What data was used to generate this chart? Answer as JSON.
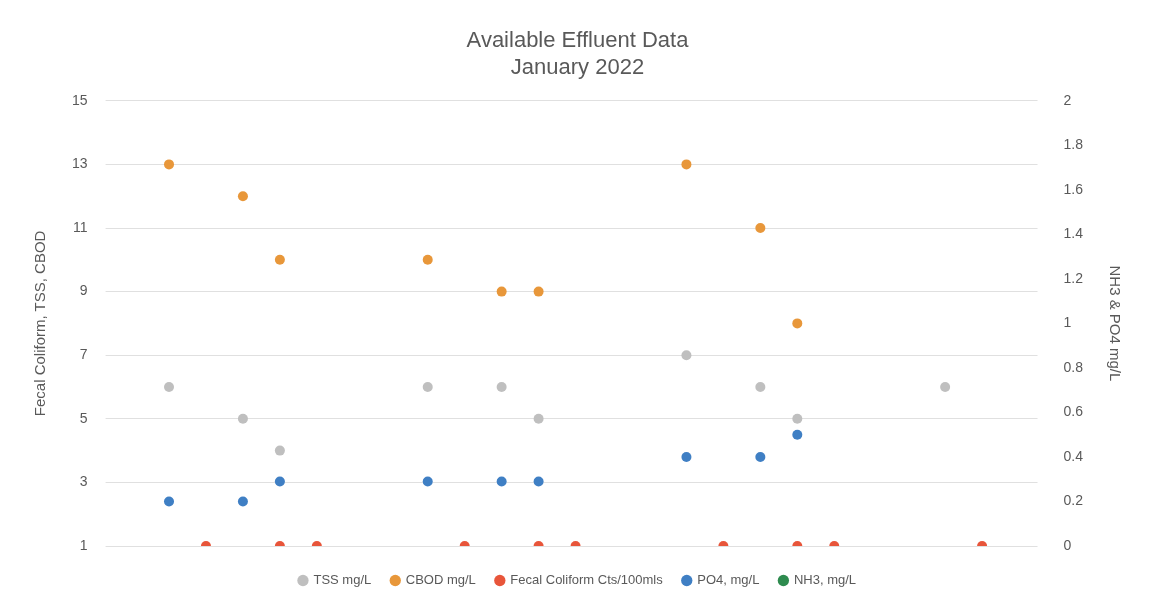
{
  "chart_data": {
    "type": "scatter",
    "title": "Available Effluent Data",
    "subtitle": "January 2022",
    "ylabel": "Fecal Coliform, TSS, CBOD",
    "y2label": "NH3 & PO4 mg/L",
    "categories": [
      null,
      null,
      null,
      null,
      null,
      null,
      null,
      null,
      null,
      null,
      null,
      null,
      null,
      null,
      null,
      null,
      null,
      null,
      null,
      null,
      null,
      null,
      null,
      null,
      null
    ],
    "ylim": [
      1,
      15
    ],
    "yticks": [
      1,
      3,
      5,
      7,
      9,
      11,
      13,
      15
    ],
    "y2lim": [
      0,
      2
    ],
    "y2ticks": [
      0,
      0.2,
      0.4,
      0.6,
      0.8,
      1,
      1.2,
      1.4,
      1.6,
      1.8,
      2
    ],
    "grid": "y",
    "legend": "bottom",
    "marker": "circle",
    "tick_labels": "y",
    "series": [
      {
        "name": "TSS mg/L",
        "color": "#bfbfbf",
        "values": [
          null,
          6,
          null,
          5,
          4,
          null,
          null,
          null,
          6,
          null,
          6,
          5,
          null,
          null,
          null,
          7,
          null,
          6,
          5,
          null,
          null,
          null,
          6,
          null,
          null
        ]
      },
      {
        "name": "CBOD mg/L",
        "color": "#e8973a",
        "values": [
          null,
          13,
          null,
          12,
          10,
          null,
          null,
          null,
          10,
          null,
          9,
          9,
          null,
          null,
          null,
          13,
          null,
          11,
          8,
          null,
          null,
          null,
          null,
          null,
          null
        ]
      },
      {
        "name": "Fecal Coliform Cts/100mls",
        "color": "#e8553a",
        "values": [
          null,
          null,
          1,
          null,
          1,
          1,
          null,
          null,
          null,
          1,
          null,
          1,
          1,
          null,
          null,
          null,
          1,
          null,
          1,
          1,
          null,
          null,
          null,
          1,
          null
        ]
      },
      {
        "name": "PO4, mg/L",
        "color": "#3f7fc4",
        "axis": "y2",
        "values": [
          null,
          0.2,
          null,
          0.2,
          0.29,
          null,
          null,
          null,
          0.29,
          null,
          0.29,
          0.29,
          null,
          null,
          null,
          0.4,
          null,
          0.4,
          0.5,
          null,
          null,
          null,
          null,
          null,
          null
        ]
      },
      {
        "name": "NH3, mg/L",
        "color": "#2e8b4f",
        "axis": "y2",
        "values": [
          null,
          null,
          null,
          null,
          null,
          null,
          null,
          null,
          null,
          null,
          null,
          null,
          null,
          null,
          null,
          null,
          null,
          null,
          null,
          null,
          null,
          null,
          null,
          null,
          null
        ]
      }
    ]
  }
}
